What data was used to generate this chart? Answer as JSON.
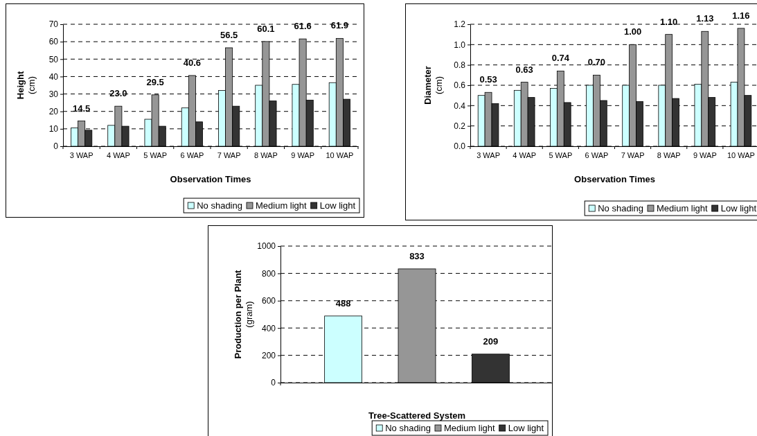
{
  "chart_data": [
    {
      "type": "bar",
      "xlabel": "Observation Times",
      "ylabel": "Height\n(cm)",
      "categories": [
        "3 WAP",
        "4 WAP",
        "5 WAP",
        "6 WAP",
        "7 WAP",
        "8 WAP",
        "9 WAP",
        "10 WAP"
      ],
      "series": [
        {
          "name": "No shading",
          "color": "#ccffff",
          "values": [
            10.5,
            12,
            15.5,
            22,
            32,
            35,
            35.5,
            36.5
          ]
        },
        {
          "name": "Medium light",
          "color": "#969696",
          "values": [
            14.5,
            23.0,
            29.5,
            40.6,
            56.5,
            60.1,
            61.6,
            61.9
          ],
          "value_labels": [
            "14.5",
            "23.0",
            "29.5",
            "40.6",
            "56.5",
            "60.1",
            "61.6",
            "61.9"
          ]
        },
        {
          "name": "Low light",
          "color": "#333333",
          "values": [
            9.2,
            11.5,
            11.5,
            14,
            23,
            26,
            26.5,
            27
          ]
        }
      ],
      "ylim": [
        0,
        70
      ],
      "yticks": [
        0,
        10,
        20,
        30,
        40,
        50,
        60,
        70
      ],
      "grid": "y",
      "legend": "bottom right"
    },
    {
      "type": "bar",
      "xlabel": "Observation Times",
      "ylabel": "Diameter\n(cm)",
      "categories": [
        "3 WAP",
        "4 WAP",
        "5 WAP",
        "6 WAP",
        "7 WAP",
        "8 WAP",
        "9 WAP",
        "10 WAP"
      ],
      "series": [
        {
          "name": "No shading",
          "color": "#ccffff",
          "values": [
            0.5,
            0.55,
            0.57,
            0.6,
            0.6,
            0.6,
            0.61,
            0.63
          ]
        },
        {
          "name": "Medium light",
          "color": "#969696",
          "values": [
            0.53,
            0.63,
            0.74,
            0.7,
            1.0,
            1.1,
            1.13,
            1.16
          ],
          "value_labels": [
            "0.53",
            "0.63",
            "0.74",
            "0.70",
            "1.00",
            "1.10",
            "1.13",
            "1.16"
          ]
        },
        {
          "name": "Low light",
          "color": "#333333",
          "values": [
            0.42,
            0.48,
            0.43,
            0.45,
            0.44,
            0.47,
            0.48,
            0.5
          ]
        }
      ],
      "ylim": [
        0,
        1.2
      ],
      "yticks": [
        {
          "value": 0,
          "label": "0.0"
        },
        0.2,
        0.4,
        0.6,
        0.8,
        {
          "value": 1,
          "label": "1.0"
        },
        1.2
      ],
      "grid": "y",
      "legend": "bottom right"
    },
    {
      "type": "bar",
      "xlabel": "Tree-Scattered System",
      "ylabel": "Production per Plant\n(gram)",
      "categories": [
        null
      ],
      "series": [
        {
          "name": "No shading",
          "color": "#ccffff",
          "values": [
            488
          ]
        },
        {
          "name": "Medium light",
          "color": "#969696",
          "values": [
            833
          ]
        },
        {
          "name": "Low light",
          "color": "#333333",
          "values": [
            209
          ]
        }
      ],
      "ylim": [
        0,
        1000
      ],
      "yticks": [
        0,
        200,
        400,
        600,
        800,
        1000
      ],
      "grid": "y",
      "data_labels": true,
      "legend": "bottom right"
    }
  ]
}
